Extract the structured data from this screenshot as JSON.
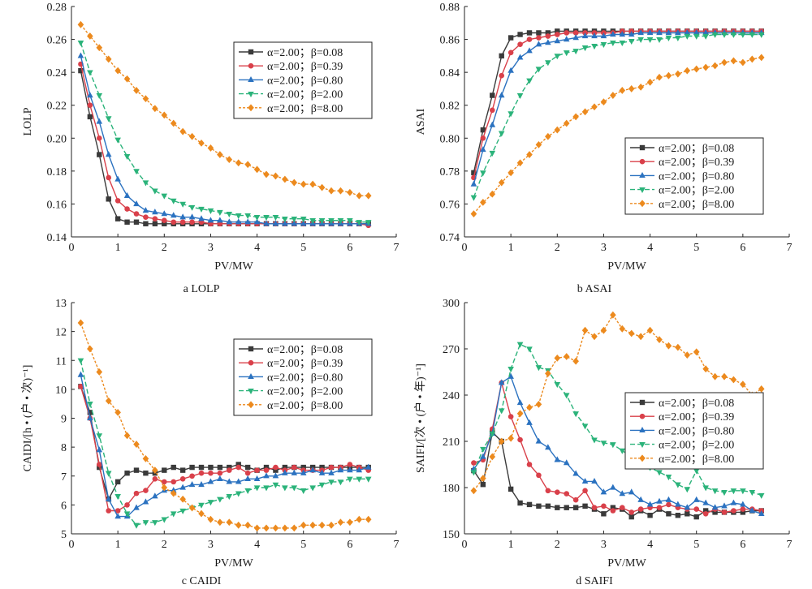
{
  "chart_data": [
    {
      "type": "line",
      "caption": "a  LOLP",
      "xlabel": "PV/MW",
      "ylabel": "LOLP",
      "xlim": [
        0,
        7
      ],
      "ylim": [
        0.14,
        0.28
      ],
      "xticks": [
        "0",
        "1",
        "2",
        "3",
        "4",
        "5",
        "6",
        "7"
      ],
      "yticks": [
        "0.14",
        "0.16",
        "0.18",
        "0.20",
        "0.22",
        "0.24",
        "0.26",
        "0.28"
      ],
      "ytick_values": [
        0.14,
        0.16,
        0.18,
        0.2,
        0.22,
        0.24,
        0.26,
        0.28
      ],
      "grid": false,
      "legend_position": "top-right",
      "x": [
        0.2,
        0.4,
        0.6,
        0.8,
        1.0,
        1.2,
        1.4,
        1.6,
        1.8,
        2.0,
        2.2,
        2.4,
        2.6,
        2.8,
        3.0,
        3.2,
        3.4,
        3.6,
        3.8,
        4.0,
        4.2,
        4.4,
        4.6,
        4.8,
        5.0,
        5.2,
        5.4,
        5.6,
        5.8,
        6.0,
        6.2,
        6.4
      ],
      "series": [
        {
          "name": "α=2.00；β=0.08",
          "values": [
            0.241,
            0.213,
            0.19,
            0.163,
            0.151,
            0.149,
            0.149,
            0.148,
            0.148,
            0.148,
            0.148,
            0.148,
            0.148,
            0.148,
            0.148,
            0.148,
            0.148,
            0.148,
            0.148,
            0.148,
            0.148,
            0.148,
            0.148,
            0.148,
            0.148,
            0.148,
            0.148,
            0.148,
            0.148,
            0.148,
            0.148,
            0.148
          ]
        },
        {
          "name": "α=2.00；β=0.39",
          "values": [
            0.245,
            0.22,
            0.2,
            0.176,
            0.162,
            0.157,
            0.154,
            0.152,
            0.151,
            0.15,
            0.149,
            0.149,
            0.149,
            0.149,
            0.148,
            0.148,
            0.148,
            0.148,
            0.148,
            0.148,
            0.148,
            0.148,
            0.148,
            0.148,
            0.148,
            0.148,
            0.148,
            0.148,
            0.148,
            0.148,
            0.148,
            0.147
          ]
        },
        {
          "name": "α=2.00；β=0.80",
          "values": [
            0.25,
            0.226,
            0.21,
            0.19,
            0.175,
            0.165,
            0.16,
            0.156,
            0.155,
            0.154,
            0.153,
            0.152,
            0.152,
            0.151,
            0.15,
            0.15,
            0.149,
            0.149,
            0.149,
            0.149,
            0.148,
            0.148,
            0.148,
            0.148,
            0.148,
            0.148,
            0.148,
            0.148,
            0.148,
            0.148,
            0.148,
            0.148
          ]
        },
        {
          "name": "α=2.00；β=2.00",
          "values": [
            0.258,
            0.24,
            0.226,
            0.212,
            0.199,
            0.189,
            0.18,
            0.173,
            0.168,
            0.165,
            0.162,
            0.16,
            0.158,
            0.157,
            0.156,
            0.155,
            0.154,
            0.153,
            0.153,
            0.152,
            0.152,
            0.152,
            0.151,
            0.151,
            0.151,
            0.15,
            0.15,
            0.15,
            0.15,
            0.15,
            0.149,
            0.149
          ]
        },
        {
          "name": "α=2.00；β=8.00",
          "values": [
            0.269,
            0.262,
            0.255,
            0.248,
            0.241,
            0.236,
            0.229,
            0.224,
            0.218,
            0.214,
            0.209,
            0.204,
            0.201,
            0.197,
            0.194,
            0.19,
            0.187,
            0.185,
            0.184,
            0.181,
            0.178,
            0.177,
            0.175,
            0.173,
            0.172,
            0.172,
            0.17,
            0.168,
            0.168,
            0.167,
            0.165,
            0.165
          ]
        }
      ]
    },
    {
      "type": "line",
      "caption": "b  ASAI",
      "xlabel": "PV/MW",
      "ylabel": "ASAI",
      "xlim": [
        0,
        7
      ],
      "ylim": [
        0.74,
        0.88
      ],
      "xticks": [
        "0",
        "1",
        "2",
        "3",
        "4",
        "5",
        "6",
        "7"
      ],
      "yticks": [
        "0.74",
        "0.76",
        "0.78",
        "0.80",
        "0.82",
        "0.84",
        "0.86",
        "0.88"
      ],
      "ytick_values": [
        0.74,
        0.76,
        0.78,
        0.8,
        0.82,
        0.84,
        0.86,
        0.88
      ],
      "grid": false,
      "legend_position": "bottom-right",
      "x": [
        0.2,
        0.4,
        0.6,
        0.8,
        1.0,
        1.2,
        1.4,
        1.6,
        1.8,
        2.0,
        2.2,
        2.4,
        2.6,
        2.8,
        3.0,
        3.2,
        3.4,
        3.6,
        3.8,
        4.0,
        4.2,
        4.4,
        4.6,
        4.8,
        5.0,
        5.2,
        5.4,
        5.6,
        5.8,
        6.0,
        6.2,
        6.4
      ],
      "series": [
        {
          "name": "α=2.00；β=0.08",
          "values": [
            0.779,
            0.805,
            0.826,
            0.85,
            0.861,
            0.863,
            0.864,
            0.864,
            0.864,
            0.865,
            0.865,
            0.865,
            0.865,
            0.865,
            0.865,
            0.865,
            0.865,
            0.865,
            0.865,
            0.865,
            0.865,
            0.865,
            0.865,
            0.865,
            0.865,
            0.865,
            0.865,
            0.865,
            0.865,
            0.865,
            0.865,
            0.865
          ]
        },
        {
          "name": "α=2.00；β=0.39",
          "values": [
            0.776,
            0.8,
            0.817,
            0.838,
            0.852,
            0.857,
            0.86,
            0.861,
            0.862,
            0.863,
            0.864,
            0.864,
            0.864,
            0.864,
            0.864,
            0.864,
            0.865,
            0.865,
            0.865,
            0.865,
            0.865,
            0.865,
            0.865,
            0.865,
            0.865,
            0.865,
            0.865,
            0.865,
            0.865,
            0.865,
            0.865,
            0.865
          ]
        },
        {
          "name": "α=2.00；β=0.80",
          "values": [
            0.772,
            0.793,
            0.808,
            0.826,
            0.841,
            0.849,
            0.853,
            0.857,
            0.858,
            0.859,
            0.86,
            0.861,
            0.862,
            0.862,
            0.862,
            0.863,
            0.863,
            0.863,
            0.864,
            0.864,
            0.864,
            0.864,
            0.864,
            0.864,
            0.864,
            0.864,
            0.864,
            0.864,
            0.864,
            0.864,
            0.864,
            0.864
          ]
        },
        {
          "name": "α=2.00；β=2.00",
          "values": [
            0.764,
            0.779,
            0.791,
            0.803,
            0.815,
            0.826,
            0.835,
            0.842,
            0.846,
            0.85,
            0.852,
            0.853,
            0.855,
            0.856,
            0.857,
            0.858,
            0.858,
            0.859,
            0.86,
            0.86,
            0.86,
            0.861,
            0.861,
            0.862,
            0.862,
            0.862,
            0.863,
            0.863,
            0.863,
            0.863,
            0.863,
            0.863
          ]
        },
        {
          "name": "α=2.00；β=8.00",
          "values": [
            0.754,
            0.761,
            0.766,
            0.773,
            0.779,
            0.785,
            0.79,
            0.796,
            0.801,
            0.805,
            0.809,
            0.813,
            0.816,
            0.819,
            0.822,
            0.826,
            0.829,
            0.83,
            0.831,
            0.834,
            0.837,
            0.838,
            0.839,
            0.841,
            0.842,
            0.843,
            0.844,
            0.846,
            0.847,
            0.846,
            0.848,
            0.849
          ]
        }
      ]
    },
    {
      "type": "line",
      "caption": "c  CAIDI",
      "xlabel": "PV/MW",
      "ylabel": "CAIDI/[h • (户 • 次)⁻¹]",
      "xlim": [
        0,
        7
      ],
      "ylim": [
        5,
        13
      ],
      "xticks": [
        "0",
        "1",
        "2",
        "3",
        "4",
        "5",
        "6",
        "7"
      ],
      "yticks": [
        "5",
        "6",
        "7",
        "8",
        "9",
        "10",
        "11",
        "12",
        "13"
      ],
      "ytick_values": [
        5,
        6,
        7,
        8,
        9,
        10,
        11,
        12,
        13
      ],
      "grid": false,
      "legend_position": "top-right",
      "x": [
        0.2,
        0.4,
        0.6,
        0.8,
        1.0,
        1.2,
        1.4,
        1.6,
        1.8,
        2.0,
        2.2,
        2.4,
        2.6,
        2.8,
        3.0,
        3.2,
        3.4,
        3.6,
        3.8,
        4.0,
        4.2,
        4.4,
        4.6,
        4.8,
        5.0,
        5.2,
        5.4,
        5.6,
        5.8,
        6.0,
        6.2,
        6.4
      ],
      "series": [
        {
          "name": "α=2.00；β=0.08",
          "values": [
            10.1,
            9.2,
            7.3,
            6.2,
            6.8,
            7.1,
            7.2,
            7.1,
            7.1,
            7.2,
            7.3,
            7.2,
            7.3,
            7.3,
            7.3,
            7.3,
            7.3,
            7.4,
            7.3,
            7.2,
            7.3,
            7.2,
            7.3,
            7.3,
            7.3,
            7.3,
            7.3,
            7.3,
            7.3,
            7.3,
            7.3,
            7.3
          ]
        },
        {
          "name": "α=2.00；β=0.39",
          "values": [
            10.1,
            9.0,
            7.4,
            5.8,
            5.8,
            6.0,
            6.4,
            6.5,
            6.9,
            6.8,
            6.8,
            6.9,
            7.0,
            7.1,
            7.1,
            7.1,
            7.2,
            7.3,
            7.1,
            7.2,
            7.2,
            7.3,
            7.2,
            7.3,
            7.2,
            7.2,
            7.2,
            7.3,
            7.3,
            7.4,
            7.3,
            7.2
          ]
        },
        {
          "name": "α=2.00；β=0.80",
          "values": [
            10.5,
            9.0,
            7.9,
            6.2,
            5.6,
            5.6,
            5.9,
            6.1,
            6.3,
            6.5,
            6.5,
            6.6,
            6.7,
            6.7,
            6.8,
            6.9,
            6.8,
            6.8,
            6.9,
            6.9,
            7.0,
            7.0,
            7.1,
            7.1,
            7.1,
            7.2,
            7.1,
            7.1,
            7.2,
            7.2,
            7.2,
            7.3
          ]
        },
        {
          "name": "α=2.00；β=2.00",
          "values": [
            11.0,
            9.5,
            8.4,
            7.1,
            6.3,
            5.7,
            5.3,
            5.4,
            5.4,
            5.5,
            5.7,
            5.8,
            5.9,
            6.0,
            6.1,
            6.2,
            6.3,
            6.4,
            6.5,
            6.6,
            6.6,
            6.7,
            6.6,
            6.6,
            6.5,
            6.6,
            6.7,
            6.8,
            6.8,
            6.9,
            6.9,
            6.9
          ]
        },
        {
          "name": "α=2.00；β=8.00",
          "values": [
            12.3,
            11.4,
            10.6,
            9.6,
            9.2,
            8.4,
            8.1,
            7.6,
            7.2,
            6.6,
            6.4,
            6.2,
            5.9,
            5.7,
            5.5,
            5.4,
            5.4,
            5.3,
            5.3,
            5.2,
            5.2,
            5.2,
            5.2,
            5.2,
            5.3,
            5.3,
            5.3,
            5.3,
            5.4,
            5.4,
            5.5,
            5.5
          ]
        }
      ]
    },
    {
      "type": "line",
      "caption": "d  SAIFI",
      "xlabel": "PV/MW",
      "ylabel": "SAIFI/[次 • (户 • 年)⁻¹]",
      "xlim": [
        0,
        7
      ],
      "ylim": [
        150,
        300
      ],
      "xticks": [
        "0",
        "1",
        "2",
        "3",
        "4",
        "5",
        "6",
        "7"
      ],
      "yticks": [
        "150",
        "180",
        "210",
        "240",
        "270",
        "300"
      ],
      "ytick_values": [
        150,
        180,
        210,
        240,
        270,
        300
      ],
      "grid": false,
      "legend_position": "right",
      "x": [
        0.2,
        0.4,
        0.6,
        0.8,
        1.0,
        1.2,
        1.4,
        1.6,
        1.8,
        2.0,
        2.2,
        2.4,
        2.6,
        2.8,
        3.0,
        3.2,
        3.4,
        3.6,
        3.8,
        4.0,
        4.2,
        4.4,
        4.6,
        4.8,
        5.0,
        5.2,
        5.4,
        5.6,
        5.8,
        6.0,
        6.2,
        6.4
      ],
      "series": [
        {
          "name": "α=2.00；β=0.08",
          "values": [
            191,
            182,
            216,
            210,
            179,
            170,
            169,
            168,
            168,
            167,
            167,
            167,
            168,
            166,
            163,
            167,
            166,
            161,
            165,
            162,
            166,
            163,
            162,
            163,
            161,
            165,
            164,
            164,
            164,
            164,
            165,
            165
          ]
        },
        {
          "name": "α=2.00；β=0.39",
          "values": [
            196,
            198,
            218,
            248,
            226,
            211,
            195,
            188,
            178,
            177,
            176,
            172,
            178,
            167,
            168,
            165,
            167,
            164,
            166,
            167,
            167,
            169,
            167,
            166,
            166,
            163,
            166,
            164,
            165,
            166,
            166,
            165
          ]
        },
        {
          "name": "α=2.00；β=0.80",
          "values": [
            192,
            200,
            215,
            248,
            252,
            235,
            222,
            210,
            206,
            198,
            196,
            189,
            184,
            184,
            177,
            180,
            176,
            177,
            172,
            169,
            171,
            172,
            169,
            167,
            172,
            170,
            167,
            168,
            170,
            169,
            165,
            163
          ]
        },
        {
          "name": "α=2.00；β=2.00",
          "values": [
            190,
            205,
            215,
            230,
            257,
            273,
            270,
            258,
            256,
            247,
            240,
            228,
            220,
            211,
            209,
            208,
            204,
            200,
            197,
            193,
            190,
            187,
            182,
            179,
            191,
            180,
            178,
            177,
            178,
            178,
            177,
            175
          ]
        },
        {
          "name": "α=2.00；β=8.00",
          "values": [
            178,
            186,
            200,
            210,
            212,
            228,
            232,
            234,
            254,
            264,
            265,
            262,
            282,
            278,
            282,
            292,
            283,
            280,
            278,
            282,
            276,
            272,
            271,
            266,
            268,
            257,
            252,
            252,
            250,
            247,
            240,
            244
          ]
        }
      ]
    }
  ],
  "series_styles": [
    {
      "color": "#3a3a3a",
      "marker": "square",
      "dash": ""
    },
    {
      "color": "#d9404a",
      "marker": "circle",
      "dash": ""
    },
    {
      "color": "#2b72c0",
      "marker": "triangle-up",
      "dash": ""
    },
    {
      "color": "#2bb37a",
      "marker": "triangle-down",
      "dash": "6,3"
    },
    {
      "color": "#ec8a1e",
      "marker": "diamond",
      "dash": "3,2"
    }
  ]
}
